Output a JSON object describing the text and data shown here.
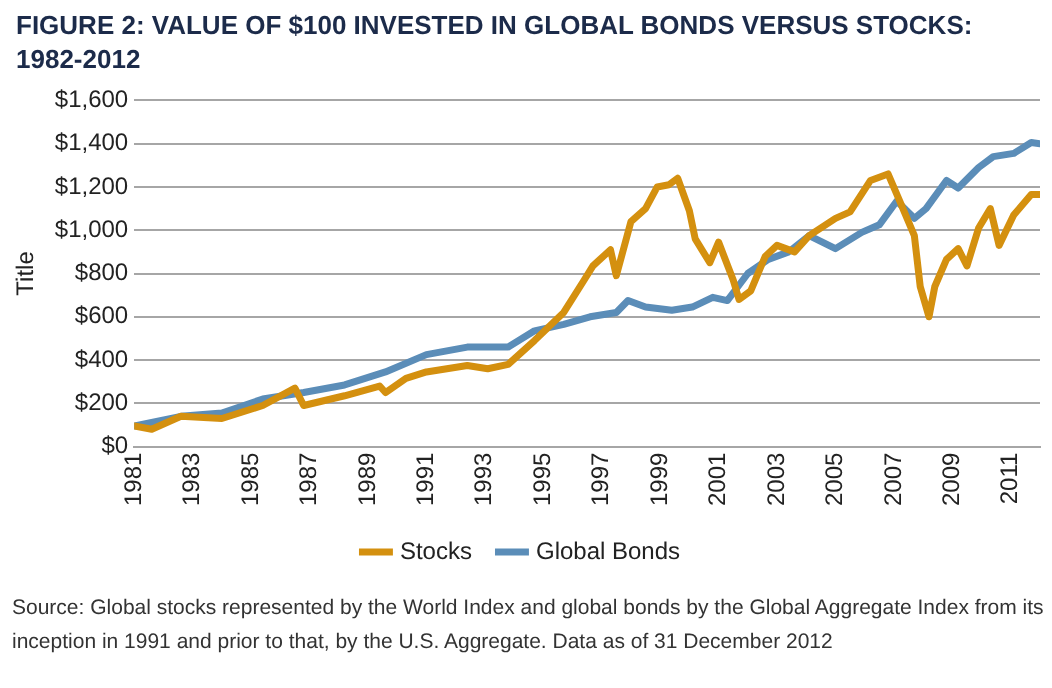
{
  "chart_data": {
    "type": "line",
    "title": "FIGURE 2: VALUE OF $100 INVESTED IN GLOBAL BONDS VERSUS STOCKS: 1982-2012",
    "ylabel": "Title",
    "xlim": [
      1981,
      2012
    ],
    "xticks": [
      1981,
      1983,
      1985,
      1987,
      1989,
      1991,
      1993,
      1995,
      1997,
      1999,
      2001,
      2003,
      2005,
      2007,
      2009,
      2011
    ],
    "ylim": [
      0,
      1600
    ],
    "yticks": [
      {
        "value": 0,
        "label": "$0"
      },
      {
        "value": 200,
        "label": "$200"
      },
      {
        "value": 400,
        "label": "$400"
      },
      {
        "value": 600,
        "label": "$600"
      },
      {
        "value": 800,
        "label": "$800"
      },
      {
        "value": 1000,
        "label": "$1,000"
      },
      {
        "value": 1200,
        "label": "$1,200"
      },
      {
        "value": 1400,
        "label": "$1,400"
      },
      {
        "value": 1600,
        "label": "$1,600"
      }
    ],
    "grid": "y",
    "legend": "bottom",
    "marker": "none",
    "line_style": "solid",
    "series": [
      {
        "name": "Stocks",
        "color": "#d4900f",
        "x": [
          1981.0,
          1981.6,
          1982.6,
          1984.0,
          1985.4,
          1986.5,
          1986.8,
          1988.2,
          1989.4,
          1989.6,
          1990.3,
          1991.0,
          1992.4,
          1993.1,
          1993.8,
          1994.7,
          1995.7,
          1996.4,
          1996.7,
          1997.3,
          1997.5,
          1998.0,
          1998.5,
          1998.9,
          1999.3,
          1999.6,
          2000.0,
          2000.2,
          2000.7,
          2001.0,
          2001.5,
          2001.7,
          2002.1,
          2002.6,
          2003.0,
          2003.6,
          2004.1,
          2005.0,
          2005.5,
          2006.2,
          2006.8,
          2007.2,
          2007.7,
          2007.9,
          2008.2,
          2008.4,
          2008.8,
          2009.2,
          2009.5,
          2009.9,
          2010.3,
          2010.6,
          2011.1,
          2011.7,
          2012.0
        ],
        "values": [
          95,
          80,
          140,
          130,
          190,
          270,
          190,
          235,
          280,
          250,
          315,
          345,
          375,
          360,
          380,
          490,
          620,
          770,
          835,
          910,
          790,
          1040,
          1100,
          1200,
          1210,
          1240,
          1090,
          960,
          850,
          945,
          770,
          680,
          720,
          880,
          930,
          900,
          975,
          1055,
          1085,
          1230,
          1260,
          1135,
          975,
          740,
          600,
          740,
          865,
          915,
          835,
          1010,
          1100,
          930,
          1070,
          1165,
          1165
        ]
      },
      {
        "name": "Global Bonds",
        "color": "#5b8db8",
        "x": [
          1981.0,
          1982.6,
          1984.0,
          1985.4,
          1986.8,
          1988.2,
          1989.6,
          1991.0,
          1992.4,
          1993.8,
          1994.7,
          1995.7,
          1996.6,
          1997.5,
          1997.9,
          1998.5,
          1999.4,
          2000.1,
          2000.8,
          2001.3,
          2002.0,
          2002.7,
          2003.4,
          2004.1,
          2005.0,
          2005.9,
          2006.5,
          2007.1,
          2007.7,
          2008.1,
          2008.8,
          2009.2,
          2009.9,
          2010.4,
          2011.1,
          2011.7,
          2012.0
        ],
        "values": [
          95,
          140,
          155,
          220,
          250,
          285,
          345,
          425,
          460,
          460,
          535,
          565,
          600,
          620,
          675,
          645,
          630,
          645,
          690,
          675,
          800,
          865,
          900,
          975,
          915,
          990,
          1025,
          1135,
          1055,
          1100,
          1230,
          1195,
          1290,
          1340,
          1355,
          1405,
          1400
        ]
      }
    ],
    "annotations": [
      "Source: Global stocks represented by the World Index and global bonds by the Global Aggregate Index from its inception in 1991 and prior to that, by the U.S. Aggregate. Data as of 31 December 2012"
    ]
  }
}
